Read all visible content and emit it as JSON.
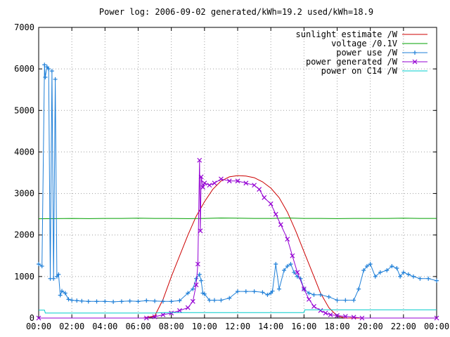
{
  "chart_data": {
    "type": "line",
    "title": "Power log: 2006-09-02 generated/kWh=19.2 used/kWh=18.9",
    "xlabel": "",
    "ylabel": "",
    "x_ticks": [
      "00:00",
      "02:00",
      "04:00",
      "06:00",
      "08:00",
      "10:00",
      "12:00",
      "14:00",
      "16:00",
      "18:00",
      "20:00",
      "22:00",
      "00:00"
    ],
    "y_ticks": [
      "0",
      "1000",
      "2000",
      "3000",
      "4000",
      "5000",
      "6000",
      "7000"
    ],
    "xlim": [
      0,
      24
    ],
    "ylim": [
      0,
      7000
    ],
    "grid": true,
    "legend_position": "top-right",
    "series": [
      {
        "name": "sunlight estimate /W",
        "color": "#cc0000",
        "style": "line",
        "x": [
          0,
          6.3,
          7.0,
          7.5,
          8.0,
          8.5,
          9.0,
          9.5,
          10.0,
          10.5,
          11.0,
          11.5,
          12.0,
          12.5,
          13.0,
          13.5,
          14.0,
          14.5,
          15.0,
          15.5,
          16.0,
          16.5,
          17.0,
          17.5,
          18.0,
          18.5,
          19.0,
          24
        ],
        "y": [
          0,
          0,
          50,
          450,
          1000,
          1500,
          2000,
          2450,
          2800,
          3100,
          3300,
          3400,
          3430,
          3420,
          3380,
          3280,
          3130,
          2900,
          2550,
          2100,
          1600,
          1100,
          600,
          250,
          50,
          0,
          0,
          0
        ]
      },
      {
        "name": "voltage /0.1V",
        "color": "#00a000",
        "style": "line",
        "x": [
          0,
          1,
          2,
          3,
          4,
          5,
          6,
          7,
          8,
          9,
          10,
          11,
          12,
          13,
          14,
          15,
          16,
          17,
          18,
          19,
          20,
          21,
          22,
          23,
          24
        ],
        "y": [
          2390,
          2395,
          2400,
          2395,
          2400,
          2400,
          2405,
          2400,
          2400,
          2395,
          2400,
          2410,
          2405,
          2400,
          2400,
          2410,
          2400,
          2400,
          2395,
          2400,
          2400,
          2400,
          2405,
          2400,
          2400
        ]
      },
      {
        "name": "power use /W",
        "color": "#1e7fd8",
        "style": "linespoints",
        "x": [
          0,
          0.2,
          0.35,
          0.4,
          0.5,
          0.6,
          0.7,
          0.8,
          0.9,
          1.0,
          1.1,
          1.2,
          1.3,
          1.4,
          1.6,
          1.8,
          2.0,
          2.3,
          2.6,
          3.0,
          3.5,
          4.0,
          4.5,
          5.0,
          5.5,
          6.0,
          6.5,
          7.0,
          7.5,
          8.0,
          8.5,
          9.0,
          9.3,
          9.5,
          9.7,
          9.8,
          9.9,
          10.0,
          10.3,
          10.6,
          11.0,
          11.5,
          12.0,
          12.5,
          13.0,
          13.5,
          13.8,
          14.0,
          14.1,
          14.3,
          14.5,
          14.8,
          15.0,
          15.2,
          15.4,
          15.6,
          15.8,
          16.0,
          16.3,
          16.6,
          17.0,
          17.5,
          18.0,
          18.5,
          19.0,
          19.3,
          19.6,
          19.8,
          20.0,
          20.3,
          20.6,
          21.0,
          21.3,
          21.6,
          21.8,
          22.0,
          22.3,
          22.6,
          23.0,
          23.5,
          24.0
        ],
        "y": [
          1300,
          1250,
          6100,
          5800,
          6050,
          6000,
          950,
          5950,
          950,
          5750,
          1000,
          1050,
          550,
          650,
          600,
          450,
          430,
          420,
          410,
          400,
          400,
          400,
          390,
          400,
          410,
          400,
          420,
          410,
          400,
          400,
          420,
          600,
          700,
          950,
          1050,
          900,
          600,
          580,
          430,
          430,
          430,
          480,
          640,
          640,
          640,
          620,
          560,
          600,
          650,
          1300,
          700,
          1150,
          1250,
          1300,
          1100,
          1000,
          950,
          700,
          600,
          560,
          560,
          510,
          430,
          430,
          430,
          700,
          1150,
          1250,
          1300,
          1000,
          1100,
          1150,
          1250,
          1200,
          1000,
          1100,
          1050,
          1000,
          950,
          950,
          900
        ]
      },
      {
        "name": "power generated /W",
        "color": "#9400d3",
        "style": "linespoints",
        "x": [
          0,
          6.5,
          7.0,
          7.5,
          8.0,
          8.5,
          9.0,
          9.3,
          9.5,
          9.6,
          9.7,
          9.75,
          9.8,
          9.9,
          10.0,
          10.3,
          10.6,
          11.0,
          11.5,
          12.0,
          12.5,
          13.0,
          13.3,
          13.6,
          14.0,
          14.3,
          14.6,
          15.0,
          15.3,
          15.6,
          16.0,
          16.3,
          16.6,
          17.0,
          17.3,
          17.6,
          18.0,
          18.5,
          19.0,
          19.5,
          24
        ],
        "y": [
          0,
          0,
          30,
          80,
          120,
          180,
          250,
          400,
          800,
          1300,
          3800,
          2100,
          3400,
          3150,
          3250,
          3200,
          3250,
          3350,
          3300,
          3300,
          3250,
          3200,
          3100,
          2900,
          2750,
          2500,
          2250,
          1900,
          1500,
          1100,
          700,
          450,
          280,
          180,
          120,
          80,
          60,
          40,
          20,
          0,
          0
        ]
      },
      {
        "name": "power on C14 /W",
        "color": "#00cccc",
        "style": "line",
        "x": [
          0,
          0.35,
          0.4,
          7.0,
          7.5,
          14.0,
          16.0,
          16.05,
          18.0,
          20.0,
          24.0
        ],
        "y": [
          190,
          190,
          120,
          120,
          130,
          130,
          130,
          200,
          200,
          200,
          200
        ]
      }
    ]
  }
}
